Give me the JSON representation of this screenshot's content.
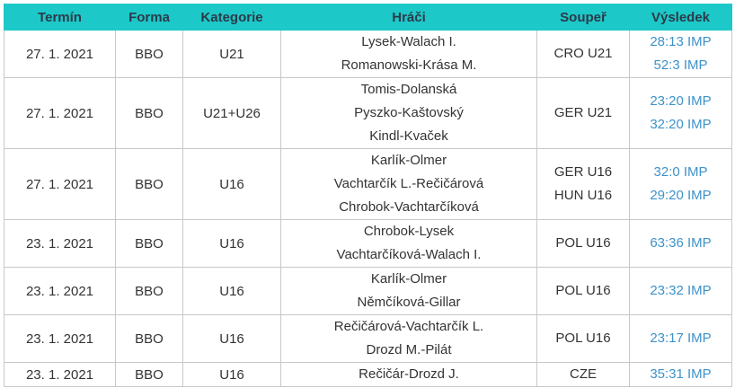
{
  "table": {
    "header": [
      "Termín",
      "Forma",
      "Kategorie",
      "Hráči",
      "Soupeř",
      "Výsledek"
    ],
    "rows": [
      {
        "date": "27. 1. 2021",
        "form": "BBO",
        "category": "U21",
        "players": [
          "Lysek-Walach I.",
          "Romanowski-Krása M."
        ],
        "opponents": [
          "CRO U21"
        ],
        "results": [
          "28:13 IMP",
          "52:3 IMP"
        ]
      },
      {
        "date": "27. 1. 2021",
        "form": "BBO",
        "category": "U21+U26",
        "players": [
          "Tomis-Dolanská",
          "Pyszko-Kaštovský",
          "Kindl-Kvaček"
        ],
        "opponents": [
          "GER U21"
        ],
        "results": [
          "23:20 IMP",
          "32:20 IMP"
        ]
      },
      {
        "date": "27. 1. 2021",
        "form": "BBO",
        "category": "U16",
        "players": [
          "Karlík-Olmer",
          "Vachtarčík L.-Rečičárová",
          "Chrobok-Vachtarčíková"
        ],
        "opponents": [
          "GER U16",
          "HUN U16"
        ],
        "results": [
          "32:0 IMP",
          "29:20 IMP"
        ]
      },
      {
        "date": "23. 1. 2021",
        "form": "BBO",
        "category": "U16",
        "players": [
          "Chrobok-Lysek",
          "Vachtarčíková-Walach I."
        ],
        "opponents": [
          "POL U16"
        ],
        "results": [
          "63:36 IMP"
        ]
      },
      {
        "date": "23. 1. 2021",
        "form": "BBO",
        "category": "U16",
        "players": [
          "Karlík-Olmer",
          "Němčíková-Gillar"
        ],
        "opponents": [
          "POL U16"
        ],
        "results": [
          "23:32 IMP"
        ]
      },
      {
        "date": "23. 1. 2021",
        "form": "BBO",
        "category": "U16",
        "players": [
          "Rečičárová-Vachtarčík L.",
          "Drozd M.-Pilát"
        ],
        "opponents": [
          "POL U16"
        ],
        "results": [
          "23:17 IMP"
        ]
      },
      {
        "date": "23. 1. 2021",
        "form": "BBO",
        "category": "U16",
        "players": [
          "Rečičár-Drozd J."
        ],
        "opponents": [
          "CZE"
        ],
        "results": [
          "35:31 IMP"
        ]
      }
    ]
  }
}
